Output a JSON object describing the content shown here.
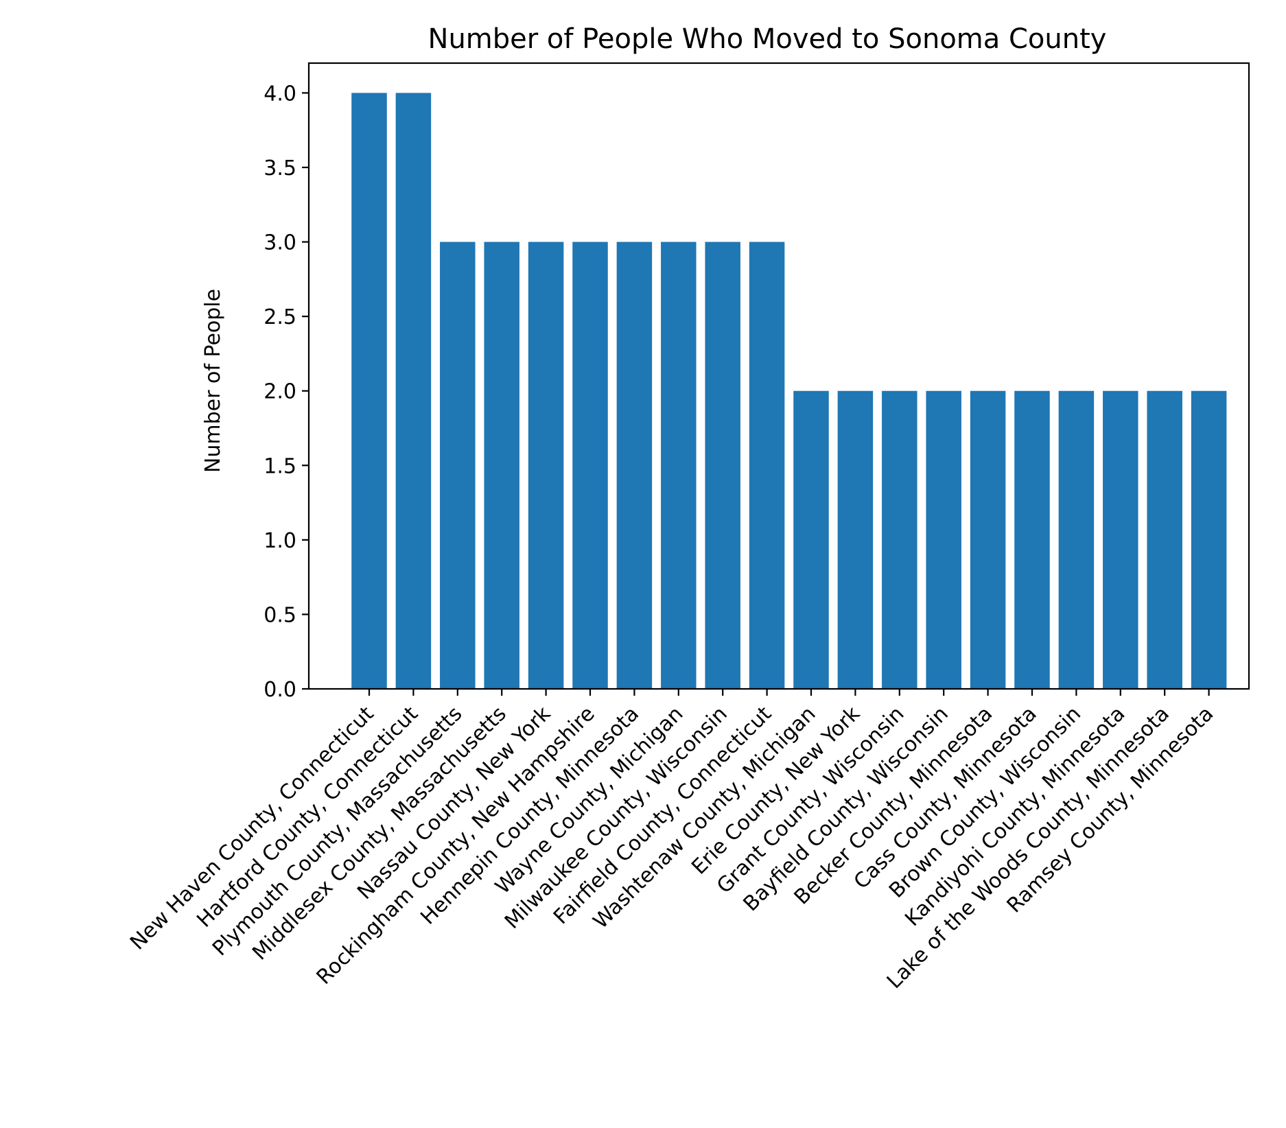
{
  "chart_data": {
    "type": "bar",
    "title": "Number of People Who Moved to Sonoma County",
    "xlabel": "",
    "ylabel": "Number of People",
    "ylim": [
      0,
      4.2
    ],
    "yticks": [
      "0.0",
      "0.5",
      "1.0",
      "1.5",
      "2.0",
      "2.5",
      "3.0",
      "3.5",
      "4.0"
    ],
    "grid": false,
    "bar_color": "#1f77b4",
    "categories": [
      "New Haven County, Connecticut",
      "Hartford County, Connecticut",
      "Plymouth County, Massachusetts",
      "Middlesex County, Massachusetts",
      "Nassau County, New York",
      "Rockingham County, New Hampshire",
      "Hennepin County, Minnesota",
      "Wayne County, Michigan",
      "Milwaukee County, Wisconsin",
      "Fairfield County, Connecticut",
      "Washtenaw County, Michigan",
      "Erie County, New York",
      "Grant County, Wisconsin",
      "Bayfield County, Wisconsin",
      "Becker County, Minnesota",
      "Cass County, Minnesota",
      "Brown County, Wisconsin",
      "Kandiyohi County, Minnesota",
      "Lake of the Woods County, Minnesota",
      "Ramsey County, Minnesota"
    ],
    "values": [
      4,
      4,
      3,
      3,
      3,
      3,
      3,
      3,
      3,
      3,
      2,
      2,
      2,
      2,
      2,
      2,
      2,
      2,
      2,
      2
    ]
  }
}
